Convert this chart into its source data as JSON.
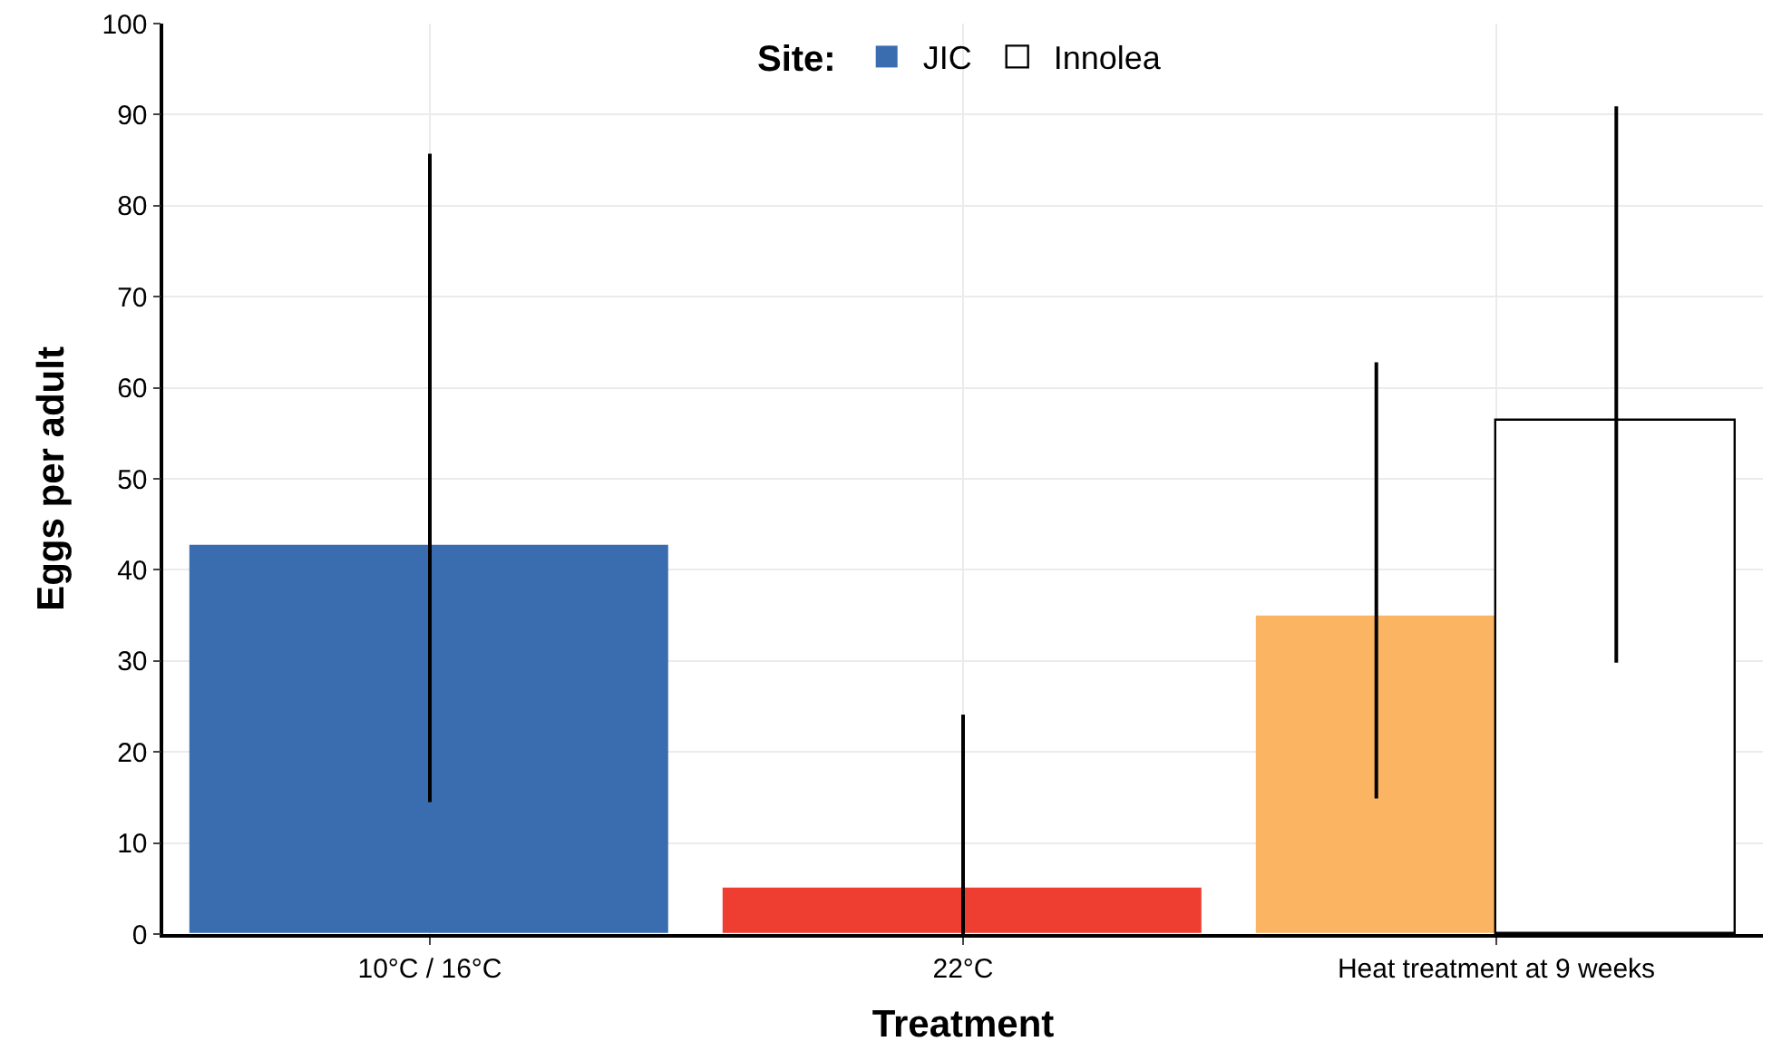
{
  "chart_data": {
    "type": "bar",
    "xlabel": "Treatment",
    "ylabel": "Eggs per adult",
    "legend_title": "Site:",
    "categories": [
      "10°C / 16°C",
      "22°C",
      "Heat treatment at 9 weeks"
    ],
    "series": [
      {
        "name": "JIC",
        "colors": [
          "#3a6db0",
          "#ee3e31",
          "#fbb462"
        ],
        "values": [
          42.7,
          5.0,
          34.8
        ],
        "errors": [
          [
            14.5,
            85.7
          ],
          [
            0,
            24.1
          ],
          [
            14.9,
            62.8
          ]
        ]
      },
      {
        "name": "Innolea",
        "color": "#ffffff",
        "values": [
          null,
          null,
          56.3
        ],
        "errors": [
          null,
          null,
          [
            29.8,
            90.9
          ]
        ]
      }
    ],
    "ylim": [
      0,
      100
    ],
    "yticks": [
      0,
      10,
      20,
      30,
      40,
      50,
      60,
      70,
      80,
      90,
      100
    ],
    "grid": true,
    "legend": "top"
  }
}
